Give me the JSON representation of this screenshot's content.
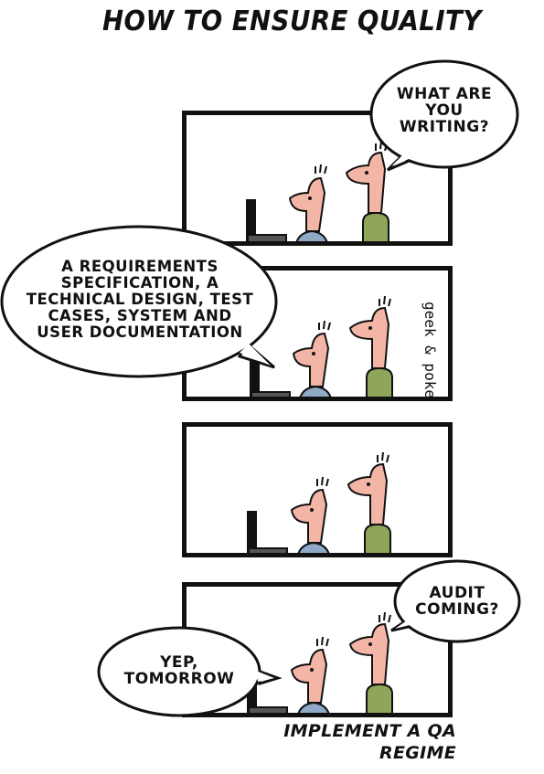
{
  "title": "HOW TO ENSURE QUALITY",
  "credit": "geek & poke",
  "caption": {
    "line1": "IMPLEMENT A QA",
    "line2": "REGIME"
  },
  "panels": [
    {
      "bubbles": [
        {
          "speaker": "standing-man",
          "lines": [
            "WHAT ARE",
            "YOU",
            "WRITING?"
          ]
        }
      ]
    },
    {
      "bubbles": [
        {
          "speaker": "seated-man",
          "lines": [
            "A REQUIREMENTS",
            "SPECIFICATION, A",
            "TECHNICAL DESIGN, TEST",
            "CASES, SYSTEM AND",
            "USER DOCUMENTATION"
          ]
        }
      ]
    },
    {
      "bubbles": []
    },
    {
      "bubbles": [
        {
          "speaker": "standing-man",
          "lines": [
            "AUDIT",
            "COMING?"
          ]
        },
        {
          "speaker": "seated-man",
          "lines": [
            "YEP,",
            "TOMORROW"
          ]
        }
      ]
    }
  ],
  "colors": {
    "ink": "#111111",
    "skin": "#f3b6a6",
    "shirt_blue": "#8fa9c6",
    "shirt_green": "#8fa55a"
  }
}
